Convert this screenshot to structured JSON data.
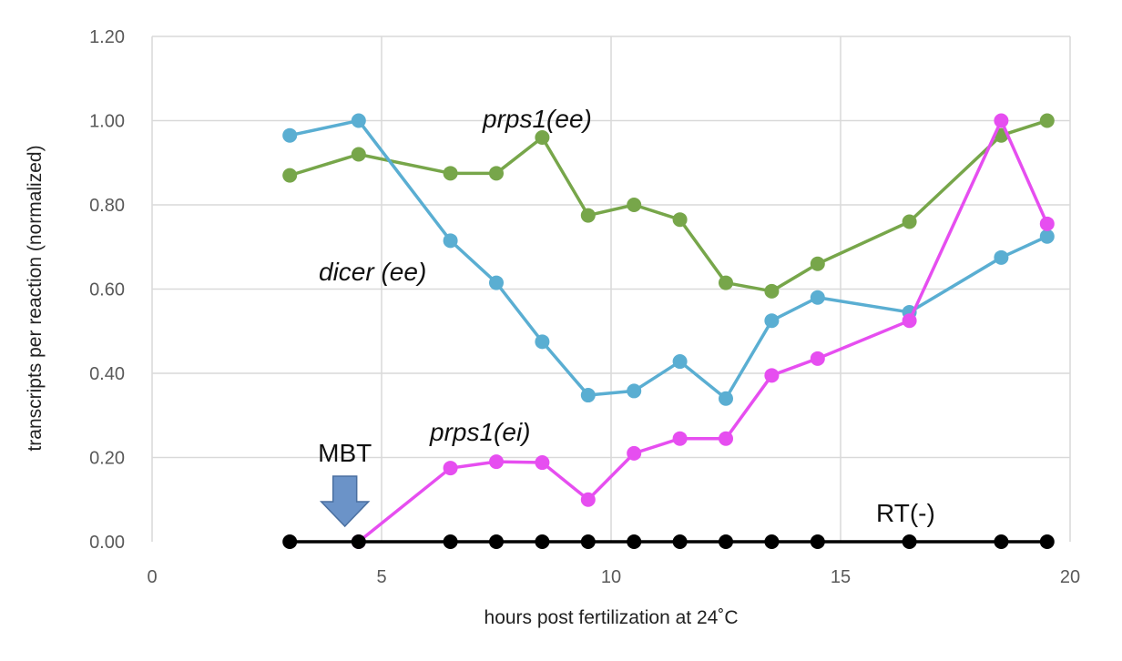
{
  "chart_data": {
    "type": "line",
    "title": "",
    "xlabel": "hours post fertilization at 24˚C",
    "ylabel": "transcripts per reaction (normalized)",
    "xlim": [
      0,
      20
    ],
    "ylim": [
      0,
      1.2
    ],
    "x_ticks": [
      0,
      5,
      10,
      15,
      20
    ],
    "x_tick_labels": [
      "0",
      "5",
      "10",
      "15",
      "20"
    ],
    "y_ticks": [
      0,
      0.2,
      0.4,
      0.6,
      0.8,
      1.0,
      1.2
    ],
    "y_tick_labels": [
      "0.00",
      "0.20",
      "0.40",
      "0.60",
      "0.80",
      "1.00",
      "1.20"
    ],
    "grid": true,
    "series": [
      {
        "name": "prps1(ee)",
        "color": "#77a64a",
        "x": [
          3,
          4.5,
          6.5,
          7.5,
          8.5,
          9.5,
          10.5,
          11.5,
          12.5,
          13.5,
          14.5,
          16.5,
          18.5,
          19.5
        ],
        "y": [
          0.87,
          0.92,
          0.875,
          0.875,
          0.96,
          0.775,
          0.8,
          0.765,
          0.615,
          0.595,
          0.66,
          0.76,
          0.965,
          1.0
        ]
      },
      {
        "name": "dicer (ee)",
        "color": "#5aaed2",
        "x": [
          3,
          4.5,
          6.5,
          7.5,
          8.5,
          9.5,
          10.5,
          11.5,
          12.5,
          13.5,
          14.5,
          16.5,
          18.5,
          19.5
        ],
        "y": [
          0.965,
          1.0,
          0.715,
          0.615,
          0.475,
          0.348,
          0.358,
          0.428,
          0.34,
          0.525,
          0.58,
          0.545,
          0.675,
          0.725
        ]
      },
      {
        "name": "prps1(ei)",
        "color": "#e64ef0",
        "x": [
          4.5,
          6.5,
          7.5,
          8.5,
          9.5,
          10.5,
          11.5,
          12.5,
          13.5,
          14.5,
          16.5,
          18.5,
          19.5
        ],
        "y": [
          0.0,
          0.175,
          0.19,
          0.188,
          0.1,
          0.21,
          0.245,
          0.245,
          0.395,
          0.435,
          0.525,
          1.0,
          0.755
        ]
      },
      {
        "name": "RT(-)",
        "color": "#000000",
        "x": [
          3,
          4.5,
          6.5,
          7.5,
          8.5,
          9.5,
          10.5,
          11.5,
          12.5,
          13.5,
          14.5,
          16.5,
          18.5,
          19.5
        ],
        "y": [
          0,
          0,
          0,
          0,
          0,
          0,
          0,
          0,
          0,
          0,
          0,
          0,
          0,
          0
        ]
      }
    ],
    "annotations": [
      {
        "name": "prps1-ee",
        "text": "prps1(ee)",
        "italic": true
      },
      {
        "name": "dicer-ee",
        "text": "dicer (ee)",
        "italic": true
      },
      {
        "name": "prps1-ei",
        "text": "prps1(ei)",
        "italic": true
      },
      {
        "name": "mbt",
        "text": "MBT",
        "italic": false,
        "arrow_at_x": 4.2
      },
      {
        "name": "rt-minus",
        "text": "RT(-)",
        "italic": false
      }
    ],
    "arrow_color": "#6b93c8"
  }
}
